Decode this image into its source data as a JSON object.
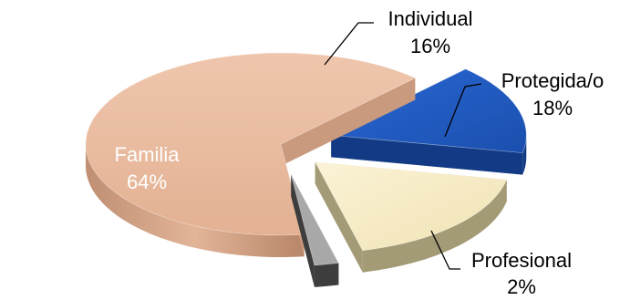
{
  "chart_data": {
    "type": "pie",
    "three_d": true,
    "exploded": true,
    "slices": [
      {
        "label": "Familia",
        "value": 64,
        "value_label": "64%",
        "color": "#e8b99e",
        "side_color": "#c99a7e",
        "label_color": "#ffffff"
      },
      {
        "label": "Individual",
        "value": 16,
        "value_label": "16%",
        "color": "#1f5bc1",
        "side_color": "#123a85",
        "label_color": "#000000"
      },
      {
        "label": "Protegida/o",
        "value": 18,
        "value_label": "18%",
        "color": "#f6ebc6",
        "side_color": "#a39a76",
        "label_color": "#000000"
      },
      {
        "label": "Profesional",
        "value": 2,
        "value_label": "2%",
        "color": "#a8a8a8",
        "side_color": "#3d3d3d",
        "label_color": "#000000"
      }
    ],
    "legend": "none",
    "data_labels": "outside with leader lines (Familia inside)"
  }
}
